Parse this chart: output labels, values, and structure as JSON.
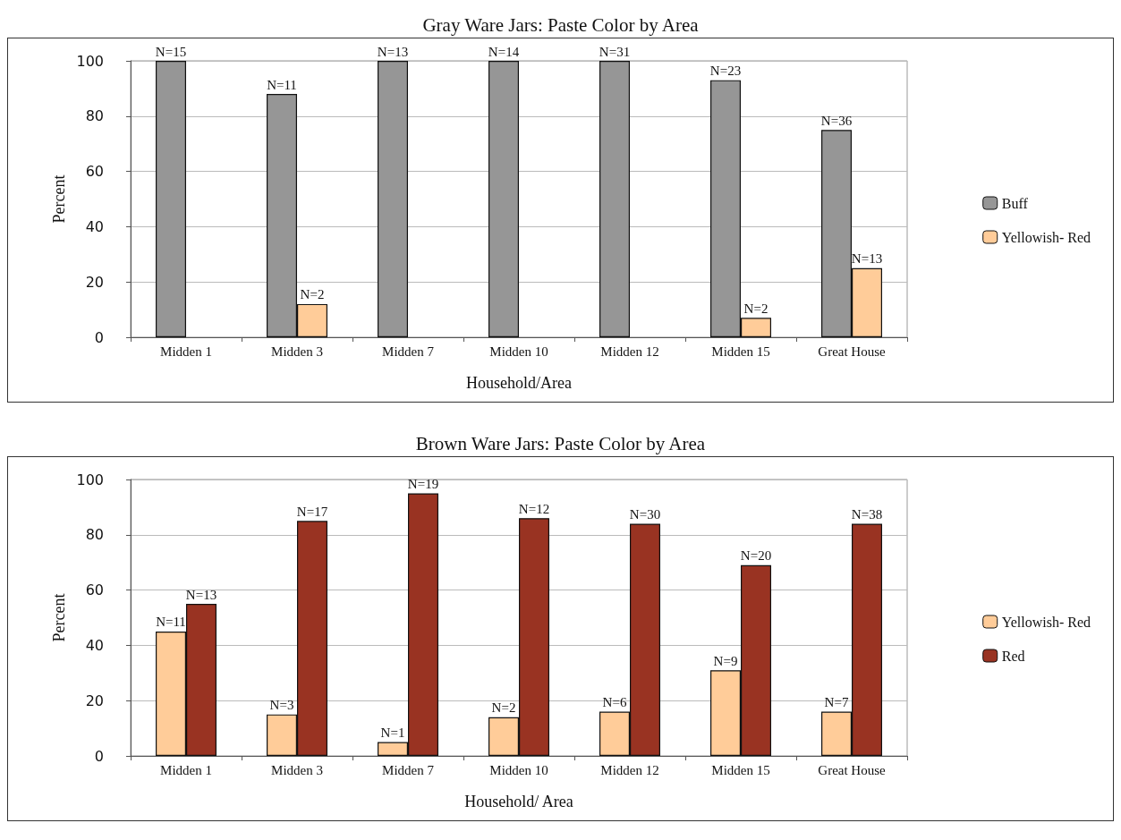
{
  "chart_data": [
    {
      "type": "bar",
      "title": "Gray Ware Jars: Paste Color by Area",
      "xlabel": "Household/Area",
      "ylabel": "Percent",
      "categories": [
        "Midden 1",
        "Midden 3",
        "Midden 7",
        "Midden 10",
        "Midden 12",
        "Midden 15",
        "Great House"
      ],
      "series": [
        {
          "name": "Buff",
          "color": "#969696",
          "values": [
            100,
            88,
            100,
            100,
            100,
            93,
            75
          ]
        },
        {
          "name": "Yellowish- Red",
          "color": "#ffcc99",
          "values": [
            null,
            12,
            null,
            null,
            null,
            7,
            25
          ]
        }
      ],
      "annotations": [
        {
          "text": "N=15",
          "x": "Midden 1",
          "y": 100
        },
        {
          "text": "N=11",
          "x": "Midden 3",
          "y": 88
        },
        {
          "text": "N=2",
          "x": "Midden 3",
          "y": 12
        },
        {
          "text": "N=13",
          "x": "Midden 7",
          "y": 100
        },
        {
          "text": "N=14",
          "x": "Midden 10",
          "y": 100
        },
        {
          "text": "N=31",
          "x": "Midden 12",
          "y": 100
        },
        {
          "text": "N=23",
          "x": "Midden 15",
          "y": 93
        },
        {
          "text": "N=2",
          "x": "Midden 15",
          "y": 7
        },
        {
          "text": "N=36",
          "x": "Great House",
          "y": 75
        },
        {
          "text": "N=13",
          "x": "Great House",
          "y": 25
        }
      ],
      "ylim": [
        0,
        100
      ],
      "yticks": [
        0,
        20,
        40,
        60,
        80,
        100
      ],
      "grid": "y",
      "legend": "right"
    },
    {
      "type": "bar",
      "title": "Brown Ware Jars: Paste Color by Area",
      "xlabel": "Household/ Area",
      "ylabel": "Percent",
      "categories": [
        "Midden 1",
        "Midden 3",
        "Midden 7",
        "Midden 10",
        "Midden 12",
        "Midden 15",
        "Great House"
      ],
      "series": [
        {
          "name": "Yellowish- Red",
          "color": "#ffcc99",
          "values": [
            45,
            15,
            5,
            14,
            16,
            31,
            16
          ]
        },
        {
          "name": "Red",
          "color": "#993322",
          "values": [
            55,
            85,
            95,
            86,
            84,
            69,
            84
          ]
        }
      ],
      "annotations": [
        {
          "text": "N=11",
          "x": "Midden 1",
          "y": 45
        },
        {
          "text": "N=13",
          "x": "Midden 1",
          "y": 55
        },
        {
          "text": "N=3",
          "x": "Midden 3",
          "y": 15
        },
        {
          "text": "N=17",
          "x": "Midden 3",
          "y": 85
        },
        {
          "text": "N=1",
          "x": "Midden 7",
          "y": 5
        },
        {
          "text": "N=19",
          "x": "Midden 7",
          "y": 95
        },
        {
          "text": "N=2",
          "x": "Midden 10",
          "y": 14
        },
        {
          "text": "N=12",
          "x": "Midden 10",
          "y": 86
        },
        {
          "text": "N=6",
          "x": "Midden 12",
          "y": 16
        },
        {
          "text": "N=30",
          "x": "Midden 12",
          "y": 84
        },
        {
          "text": "N=9",
          "x": "Midden 15",
          "y": 31
        },
        {
          "text": "N=20",
          "x": "Midden 15",
          "y": 69
        },
        {
          "text": "N=7",
          "x": "Great House",
          "y": 16
        },
        {
          "text": "N=38",
          "x": "Great House",
          "y": 84
        }
      ],
      "ylim": [
        0,
        100
      ],
      "yticks": [
        0,
        20,
        40,
        60,
        80,
        100
      ],
      "grid": "y",
      "legend": "right"
    }
  ]
}
